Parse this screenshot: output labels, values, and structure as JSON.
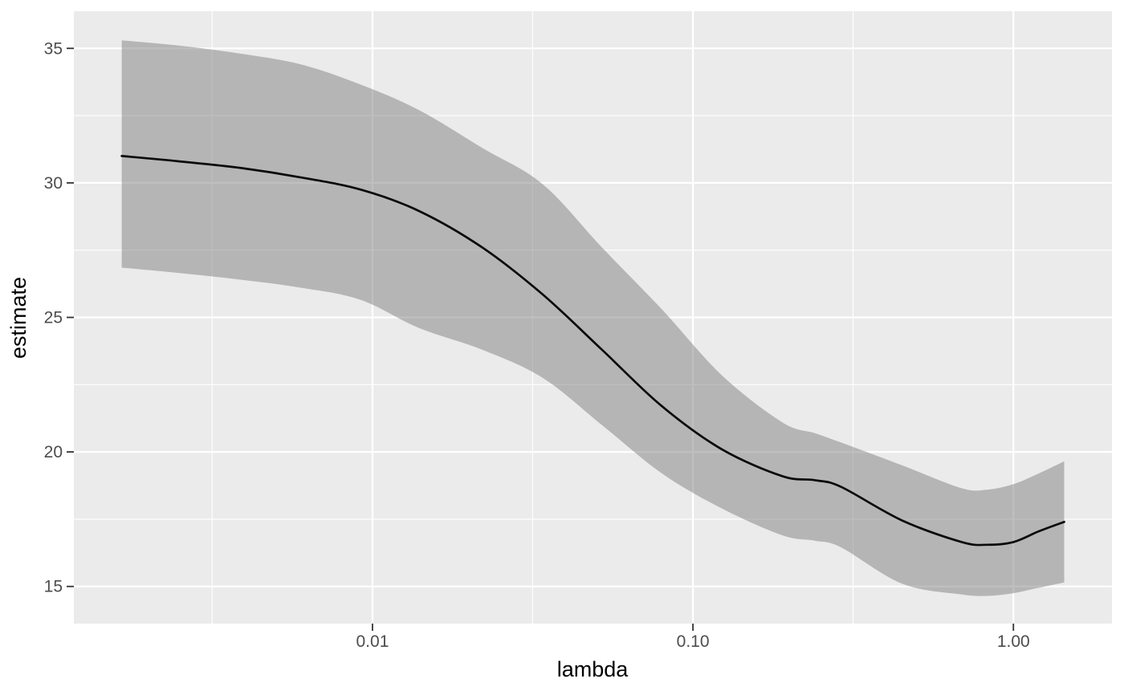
{
  "chart_data": {
    "type": "line",
    "title": "",
    "xlabel": "lambda",
    "ylabel": "estimate",
    "x_scale": "log10",
    "x_domain": [
      0.00117,
      2.03
    ],
    "y_domain": [
      13.62,
      36.38
    ],
    "grid": "on",
    "legend": "none",
    "x_ticks": [
      {
        "value": 0.01,
        "label": "0.01"
      },
      {
        "value": 0.1,
        "label": "0.10"
      },
      {
        "value": 1.0,
        "label": "1.00"
      }
    ],
    "x_minor_breaks": [
      0.00316,
      0.0316,
      0.316
    ],
    "y_ticks": [
      {
        "value": 15,
        "label": "15"
      },
      {
        "value": 20,
        "label": "20"
      },
      {
        "value": 25,
        "label": "25"
      },
      {
        "value": 30,
        "label": "30"
      },
      {
        "value": 35,
        "label": "35"
      }
    ],
    "y_minor_breaks": [
      17.5,
      22.5,
      27.5,
      32.5
    ],
    "x": [
      0.00165,
      0.0025,
      0.0039,
      0.006,
      0.0092,
      0.014,
      0.022,
      0.034,
      0.052,
      0.08,
      0.123,
      0.19,
      0.24,
      0.29,
      0.45,
      0.69,
      0.83,
      1.0,
      1.2,
      1.44
    ],
    "series": [
      {
        "name": "estimate",
        "values": [
          31.0,
          30.8,
          30.55,
          30.2,
          29.75,
          28.95,
          27.6,
          25.85,
          23.8,
          21.7,
          20.1,
          19.1,
          18.95,
          18.7,
          17.45,
          16.65,
          16.55,
          16.65,
          17.05,
          17.4
        ]
      }
    ],
    "ribbon": {
      "name": "confidence-band",
      "lower": [
        26.85,
        26.65,
        26.4,
        26.1,
        25.65,
        24.6,
        23.8,
        22.75,
        21.0,
        19.2,
        17.9,
        16.9,
        16.7,
        16.45,
        15.1,
        14.7,
        14.65,
        14.75,
        14.95,
        15.15
      ],
      "upper": [
        35.3,
        35.1,
        34.8,
        34.4,
        33.65,
        32.7,
        31.3,
        29.95,
        27.6,
        25.3,
        22.85,
        21.1,
        20.7,
        20.35,
        19.5,
        18.65,
        18.6,
        18.8,
        19.2,
        19.65
      ]
    },
    "style": {
      "outer_bg": "#ffffff",
      "panel_bg": "#ebebeb",
      "grid_color": "#ffffff",
      "line_color": "#0a0a0a",
      "ribbon_fill": "rgba(127,127,127,0.5)",
      "tick_label_color": "#4d4d4d",
      "axis_title_color": "#000000",
      "tick_mark_color": "#333333"
    }
  }
}
